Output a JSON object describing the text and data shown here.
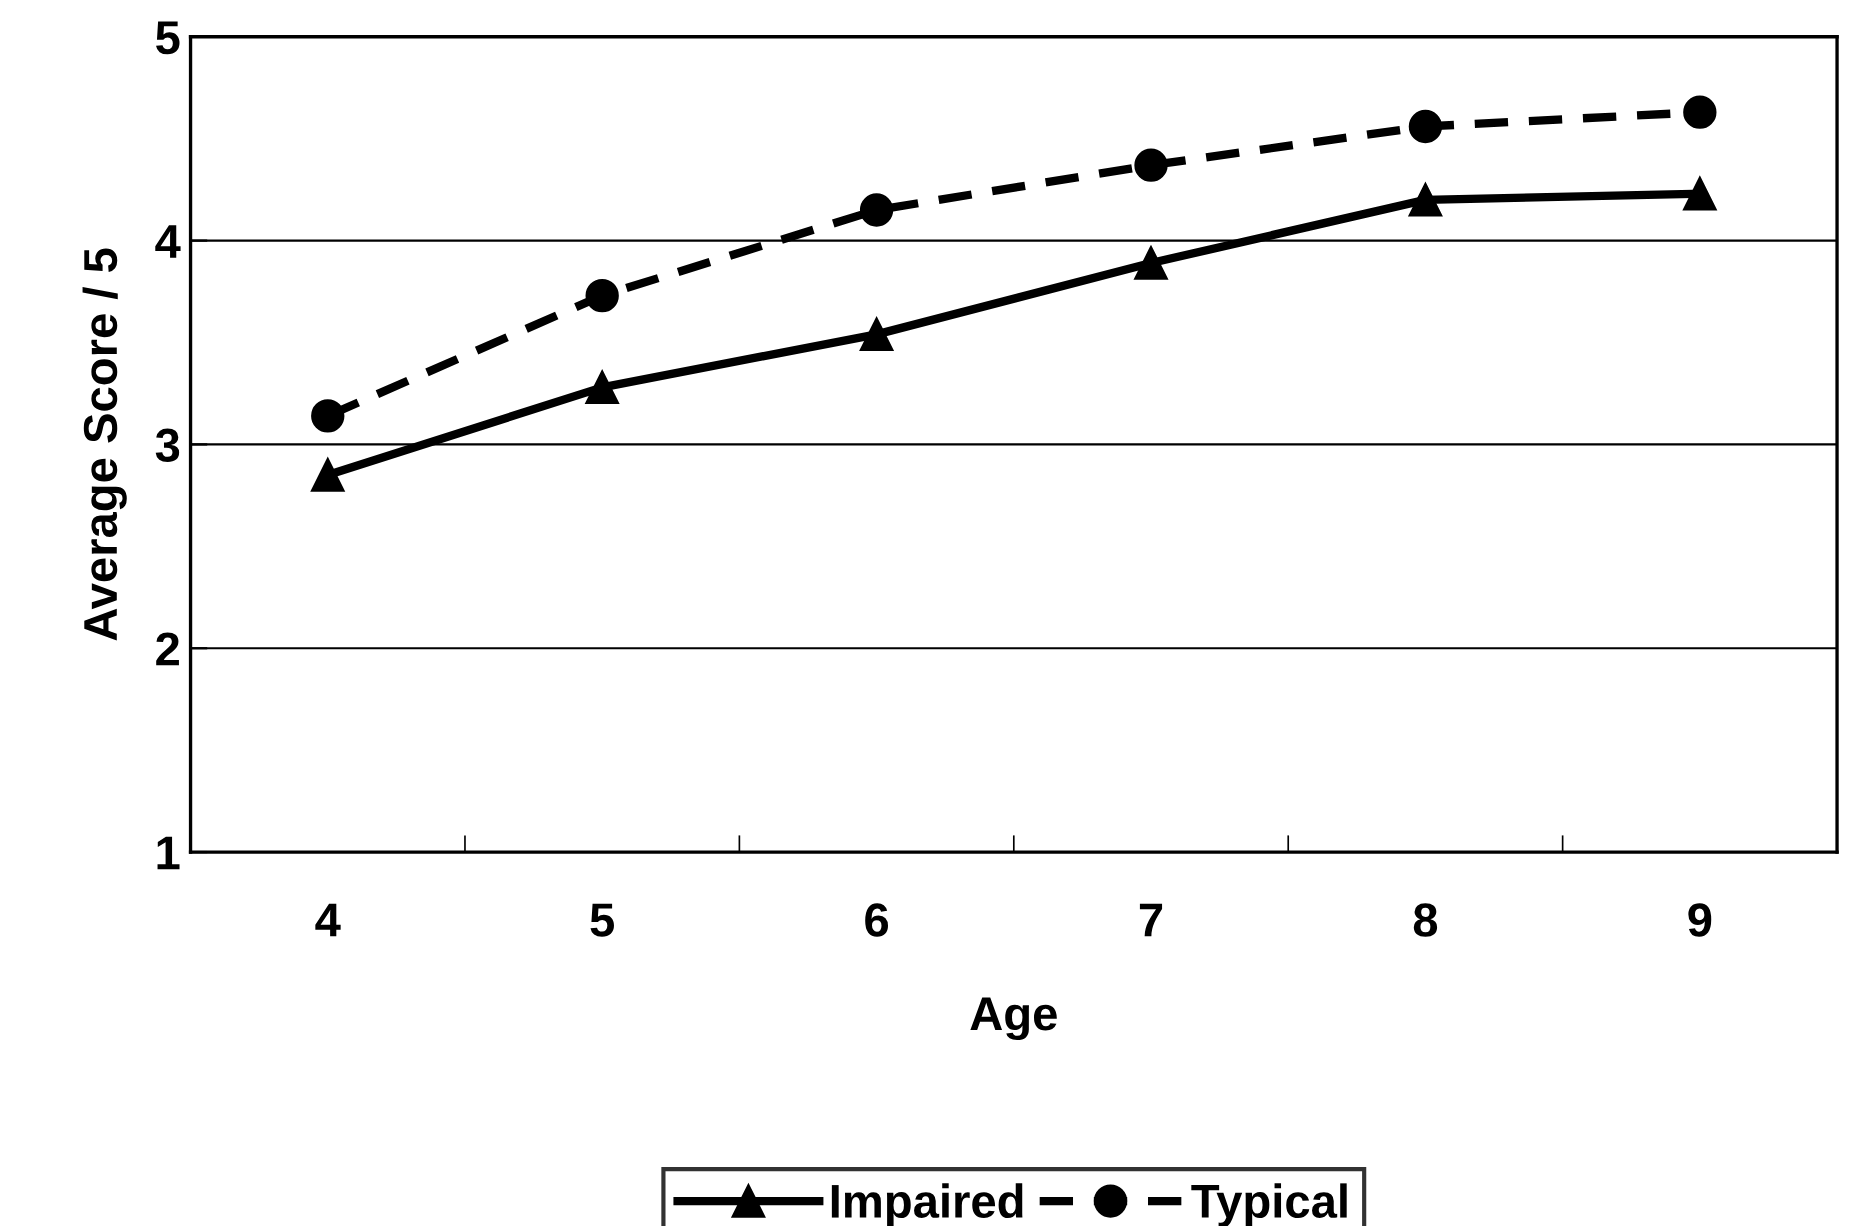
{
  "chart_data": {
    "type": "line",
    "xlabel": "Age",
    "ylabel": "Average Score / 5",
    "categories": [
      "4",
      "5",
      "6",
      "7",
      "8",
      "9"
    ],
    "series": [
      {
        "name": "Impaired",
        "color": "#000000",
        "marker": "triangle",
        "line_style": "solid",
        "values": [
          2.85,
          3.28,
          3.54,
          3.89,
          4.2,
          4.23
        ]
      },
      {
        "name": "Typical",
        "color": "#000000",
        "marker": "circle",
        "line_style": "dashed",
        "values": [
          3.14,
          3.73,
          4.15,
          4.37,
          4.56,
          4.63
        ]
      }
    ],
    "ylim": [
      1,
      5
    ],
    "yticks": [
      1,
      2,
      3,
      4,
      5
    ],
    "grid": "y",
    "legend": "bottom"
  }
}
